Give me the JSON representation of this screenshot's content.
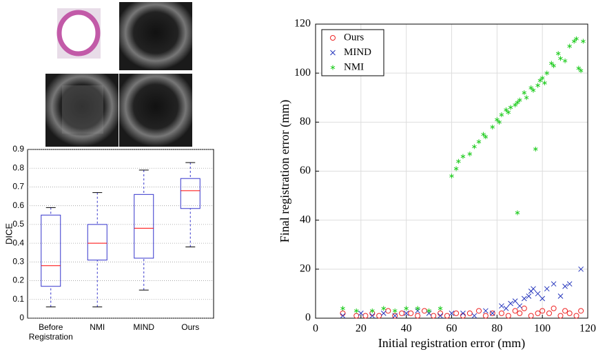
{
  "chart_data": [
    {
      "type": "box",
      "ylabel": "DICE",
      "categories": [
        "Before Registration",
        "NMI",
        "MIND",
        "Ours"
      ],
      "boxes": [
        {
          "min": 0.06,
          "q1": 0.17,
          "median": 0.28,
          "q3": 0.55,
          "max": 0.59
        },
        {
          "min": 0.06,
          "q1": 0.31,
          "median": 0.4,
          "q3": 0.5,
          "max": 0.67
        },
        {
          "min": 0.15,
          "q1": 0.32,
          "median": 0.48,
          "q3": 0.66,
          "max": 0.79
        },
        {
          "min": 0.38,
          "q1": 0.585,
          "median": 0.68,
          "q3": 0.745,
          "max": 0.83
        }
      ],
      "box_color": "#3333cc",
      "median_color": "#ff0000",
      "ylim": [
        0,
        0.9
      ],
      "yticks": [
        0,
        0.1,
        0.2,
        0.3,
        0.4,
        0.5,
        0.6,
        0.7,
        0.8,
        0.9
      ],
      "grid": true
    },
    {
      "type": "scatter",
      "xlabel": "Initial registration error (mm)",
      "ylabel": "Final registration error (mm)",
      "xlim": [
        0,
        120
      ],
      "ylim": [
        0,
        120
      ],
      "xticks": [
        0,
        20,
        40,
        60,
        80,
        100,
        120
      ],
      "yticks": [
        0,
        20,
        40,
        60,
        80,
        100,
        120
      ],
      "grid": true,
      "legend": "upper left",
      "series": [
        {
          "name": "Ours",
          "color": "#ee2222",
          "marker": "circle",
          "x": [
            12,
            18,
            22,
            25,
            28,
            32,
            35,
            38,
            42,
            45,
            48,
            52,
            55,
            58,
            62,
            65,
            68,
            72,
            75,
            78,
            82,
            85,
            88,
            90,
            92,
            95,
            98,
            100,
            103,
            105,
            108,
            110,
            112,
            115,
            117
          ],
          "y": [
            2,
            1,
            1,
            2,
            1,
            3,
            1,
            2,
            2,
            1,
            3,
            1,
            2,
            1,
            2,
            1,
            2,
            3,
            1,
            2,
            2,
            1,
            3,
            2,
            4,
            1,
            2,
            3,
            2,
            4,
            1,
            3,
            2,
            1,
            3
          ]
        },
        {
          "name": "MIND",
          "color": "#2233bb",
          "marker": "x",
          "x": [
            12,
            20,
            25,
            30,
            35,
            40,
            45,
            50,
            55,
            60,
            65,
            70,
            75,
            78,
            82,
            84,
            86,
            88,
            90,
            92,
            94,
            95,
            96,
            98,
            100,
            102,
            105,
            108,
            110,
            112,
            117
          ],
          "y": [
            1,
            2,
            1,
            2,
            1,
            2,
            3,
            2,
            1,
            2,
            2,
            1,
            3,
            2,
            5,
            4,
            6,
            7,
            5,
            8,
            9,
            11,
            12,
            10,
            8,
            12,
            14,
            9,
            13,
            14,
            20
          ]
        },
        {
          "name": "NMI",
          "color": "#22cc22",
          "marker": "asterisk",
          "x": [
            12,
            18,
            25,
            30,
            35,
            40,
            45,
            50,
            55,
            60,
            62,
            63,
            65,
            68,
            70,
            72,
            74,
            75,
            78,
            80,
            81,
            82,
            84,
            85,
            86,
            88,
            89,
            90,
            92,
            93,
            95,
            96,
            98,
            99,
            100,
            101,
            102,
            104,
            105,
            107,
            108,
            110,
            112,
            114,
            115,
            116,
            117,
            118,
            97,
            89
          ],
          "y": [
            4,
            3,
            3,
            4,
            3,
            4,
            4,
            3,
            4,
            58,
            61,
            64,
            66,
            67,
            70,
            72,
            75,
            74,
            78,
            81,
            80,
            83,
            85,
            84,
            86,
            87,
            88,
            89,
            92,
            90,
            94,
            93,
            95,
            97,
            98,
            96,
            100,
            104,
            103,
            108,
            106,
            105,
            111,
            113,
            114,
            102,
            101,
            113,
            69,
            43
          ]
        }
      ]
    }
  ]
}
